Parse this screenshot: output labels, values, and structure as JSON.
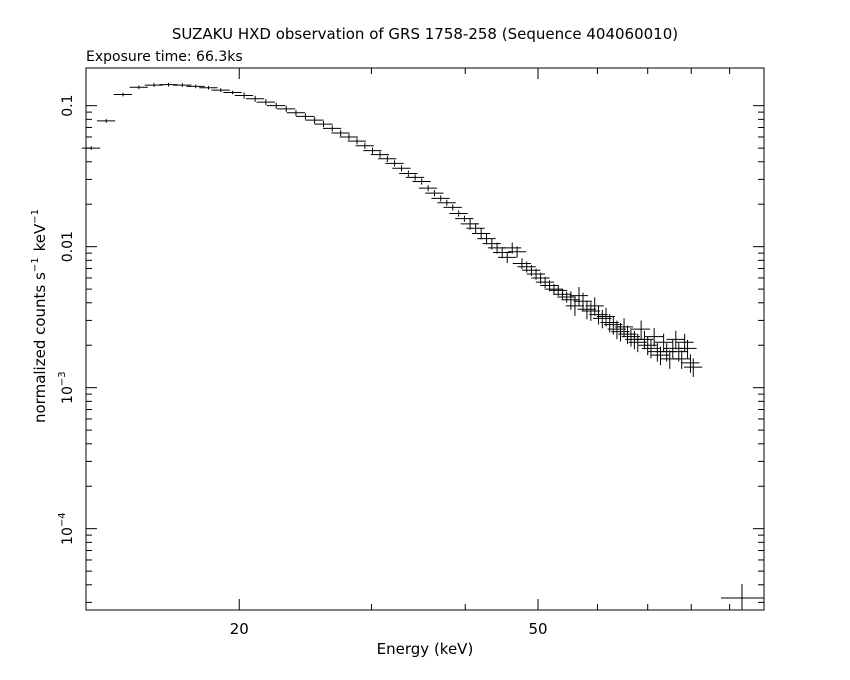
{
  "chart_data": {
    "type": "scatter",
    "title": "SUZAKU HXD observation of GRS 1758-258 (Sequence 404060010)",
    "subtitle": "Exposure time: 66.3ks",
    "xlabel": "Energy (keV)",
    "ylabel_main": "normalized counts s",
    "ylabel_sup1": "−1",
    "ylabel_unit": "keV",
    "ylabel_sup2": "−1",
    "x_scale": "log",
    "y_scale": "log",
    "xlim": [
      12.5,
      100
    ],
    "ylim": [
      2.65e-05,
      0.185
    ],
    "grid": false,
    "x_ticks": [
      {
        "value": 20,
        "label": "20"
      },
      {
        "value": 50,
        "label": "50"
      }
    ],
    "y_ticks": [
      {
        "value": 0.1,
        "base": "0.1",
        "exp": ""
      },
      {
        "value": 0.01,
        "base": "0.01",
        "exp": ""
      },
      {
        "value": 0.001,
        "base": "10",
        "exp": "−3"
      },
      {
        "value": 0.0001,
        "base": "10",
        "exp": "−4"
      }
    ],
    "series": [
      {
        "x": [
          12.7,
          13.3,
          14.0,
          14.7,
          15.4,
          16.1,
          16.8,
          17.5,
          18.2,
          18.9,
          19.6,
          20.3,
          21.0,
          21.7,
          22.4,
          23.1,
          23.8,
          24.5,
          25.2,
          25.9,
          26.6,
          27.3,
          28.0,
          28.7,
          29.4,
          30.1,
          30.8,
          31.5,
          32.2,
          32.9,
          33.6,
          34.3,
          35.0,
          35.7,
          36.4,
          37.1,
          37.8,
          38.5,
          39.2,
          39.9,
          40.6,
          41.3,
          42.0,
          42.7,
          43.4,
          44.1,
          44.8,
          45.5,
          46.2,
          46.9,
          47.6,
          48.3,
          49.0,
          49.7,
          50.4,
          51.1,
          51.8,
          52.5,
          53.2,
          53.9,
          54.6,
          55.3,
          56.0,
          56.7,
          57.4,
          58.1,
          58.8,
          59.5,
          60.2,
          60.9,
          61.6,
          62.3,
          63.0,
          63.7,
          64.4,
          65.1,
          65.8,
          66.5,
          67.2,
          67.9,
          68.6,
          69.3,
          70.0,
          70.7,
          71.4,
          72.1,
          72.8,
          73.5,
          74.2,
          74.9,
          75.6,
          76.3,
          77.0,
          77.7,
          78.4,
          79.1,
          79.8,
          80.5
        ],
        "y": [
          0.05,
          0.078,
          0.12,
          0.135,
          0.14,
          0.141,
          0.14,
          0.137,
          0.134,
          0.129,
          0.124,
          0.118,
          0.112,
          0.106,
          0.1,
          0.095,
          0.089,
          0.084,
          0.079,
          0.074,
          0.069,
          0.064,
          0.06,
          0.056,
          0.052,
          0.048,
          0.045,
          0.042,
          0.039,
          0.036,
          0.033,
          0.031,
          0.029,
          0.026,
          0.024,
          0.022,
          0.0205,
          0.019,
          0.0172,
          0.0158,
          0.0145,
          0.0135,
          0.0124,
          0.0114,
          0.0105,
          0.0098,
          0.0091,
          0.0084,
          0.0098,
          0.0092,
          0.0076,
          0.0072,
          0.0068,
          0.0064,
          0.006,
          0.0056,
          0.0053,
          0.005,
          0.0049,
          0.0046,
          0.0044,
          0.0042,
          0.0038,
          0.0045,
          0.0041,
          0.0036,
          0.0035,
          0.0038,
          0.0033,
          0.0031,
          0.0032,
          0.0029,
          0.0028,
          0.0026,
          0.0025,
          0.0027,
          0.0024,
          0.0023,
          0.0022,
          0.0021,
          0.0026,
          0.0022,
          0.002,
          0.0019,
          0.0023,
          0.0018,
          0.0017,
          0.0021,
          0.0018,
          0.0016,
          0.0019,
          0.0022,
          0.0018,
          0.0016,
          0.0021,
          0.0019,
          0.0015,
          0.0014
        ]
      }
    ],
    "legend": "none"
  }
}
